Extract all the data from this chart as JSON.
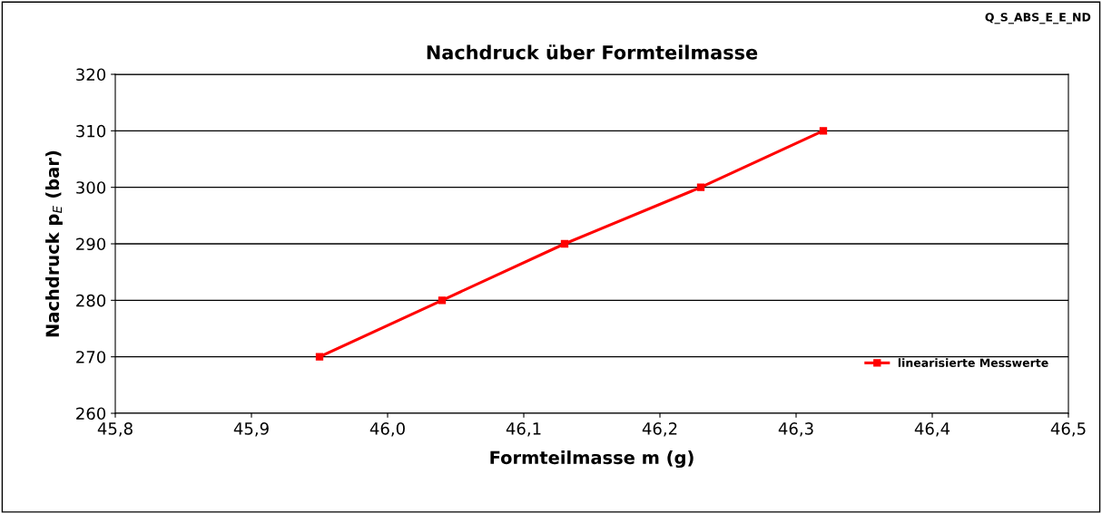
{
  "chart_data": {
    "type": "line",
    "title": "Nachdruck über Formteilmasse",
    "xlabel": "Formteilmasse m (g)",
    "ylabel": "Nachdruck p$_{E}$ (bar)",
    "annotations": [
      "Q_S_ABS_E_E_ND"
    ],
    "x": [
      45.95,
      46.04,
      46.13,
      46.23,
      46.32
    ],
    "series": [
      {
        "name": "linearisierte Messwerte",
        "color": "#ff0000",
        "values": [
          270,
          280,
          290,
          300,
          310
        ]
      }
    ],
    "xlim": [
      45.8,
      46.5
    ],
    "xticks": [
      {
        "value": 45.8,
        "label": "45,8"
      },
      {
        "value": 45.9,
        "label": "45,9"
      },
      {
        "value": 46.0,
        "label": "46,0"
      },
      {
        "value": 46.1,
        "label": "46,1"
      },
      {
        "value": 46.2,
        "label": "46,2"
      },
      {
        "value": 46.3,
        "label": "46,3"
      },
      {
        "value": 46.4,
        "label": "46,4"
      },
      {
        "value": 46.5,
        "label": "46,5"
      }
    ],
    "ylim": [
      260,
      320
    ],
    "yticks": [
      260,
      270,
      280,
      290,
      300,
      310,
      320
    ],
    "grid": "y",
    "legend": "bottom right",
    "marker": "square",
    "line_style": "solid"
  }
}
